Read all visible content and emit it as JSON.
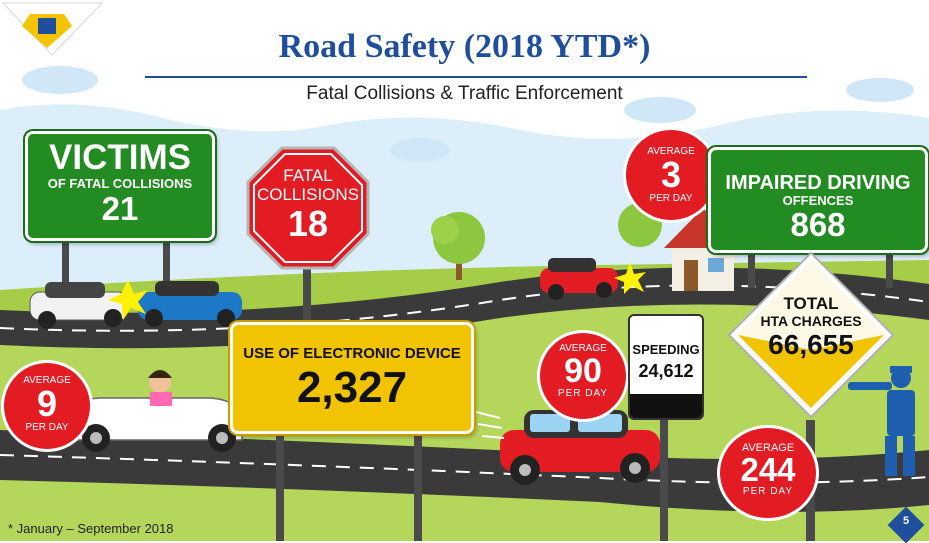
{
  "header": {
    "title": "Road Safety (2018 YTD*)",
    "subtitle": "Fatal Collisions & Traffic Enforcement"
  },
  "victims": {
    "line1": "VICTIMS",
    "line2": "OF FATAL COLLISIONS",
    "value": "21"
  },
  "fatal": {
    "line1": "FATAL",
    "line2": "COLLISIONS",
    "value": "18"
  },
  "avg_fatal_day": {
    "label_top": "AVERAGE",
    "value": "3",
    "label_bottom": "PER DAY"
  },
  "impaired": {
    "line1": "IMPAIRED DRIVING",
    "line2": "OFFENCES",
    "value": "868"
  },
  "avg_device_day": {
    "label_top": "AVERAGE",
    "value": "9",
    "label_bottom": "PER DAY"
  },
  "electronic": {
    "label": "USE OF ELECTRONIC DEVICE",
    "value": "2,327"
  },
  "avg_speed_day": {
    "label_top": "AVERAGE",
    "value": "90",
    "label_bottom": "PER DAY"
  },
  "speeding": {
    "label": "SPEEDING",
    "value": "24,612"
  },
  "hta": {
    "line1": "TOTAL",
    "line2": "HTA CHARGES",
    "value": "66,655"
  },
  "avg_hta_day": {
    "label_top": "AVERAGE",
    "value": "244",
    "label_bottom": "PER DAY"
  },
  "footer": {
    "footnote": "* January – September 2018",
    "page": "5"
  },
  "colors": {
    "title_blue": "#1f4e9c",
    "sign_green": "#228b22",
    "badge_red": "#e31b23",
    "sign_yellow": "#f2c300",
    "grass": "#a6cd48",
    "road": "#3a3a3a"
  }
}
